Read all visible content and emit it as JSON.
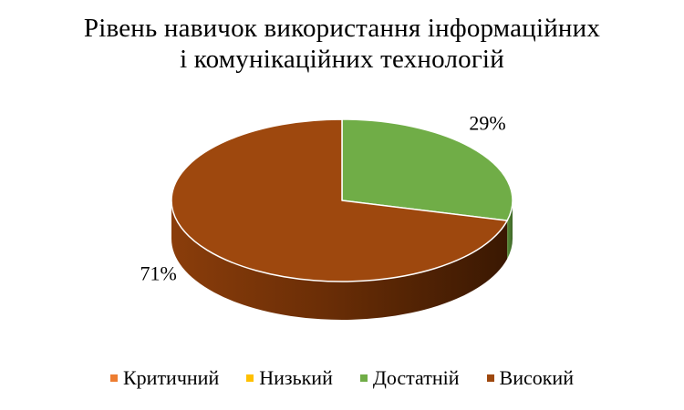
{
  "chart_data": {
    "type": "pie",
    "title_lines": [
      "Рівень навичок використання інформаційних",
      "і комунікаційних технологій"
    ],
    "categories": [
      "Критичний",
      "Низький",
      "Достатній",
      "Високий"
    ],
    "values": [
      0,
      0,
      29,
      71
    ],
    "data_labels": [
      "",
      "",
      "29%",
      "71%"
    ],
    "colors": [
      "#ED7D31",
      "#FFC000",
      "#70AD47",
      "#9E480E"
    ],
    "legend_position": "bottom",
    "style": "3d"
  }
}
